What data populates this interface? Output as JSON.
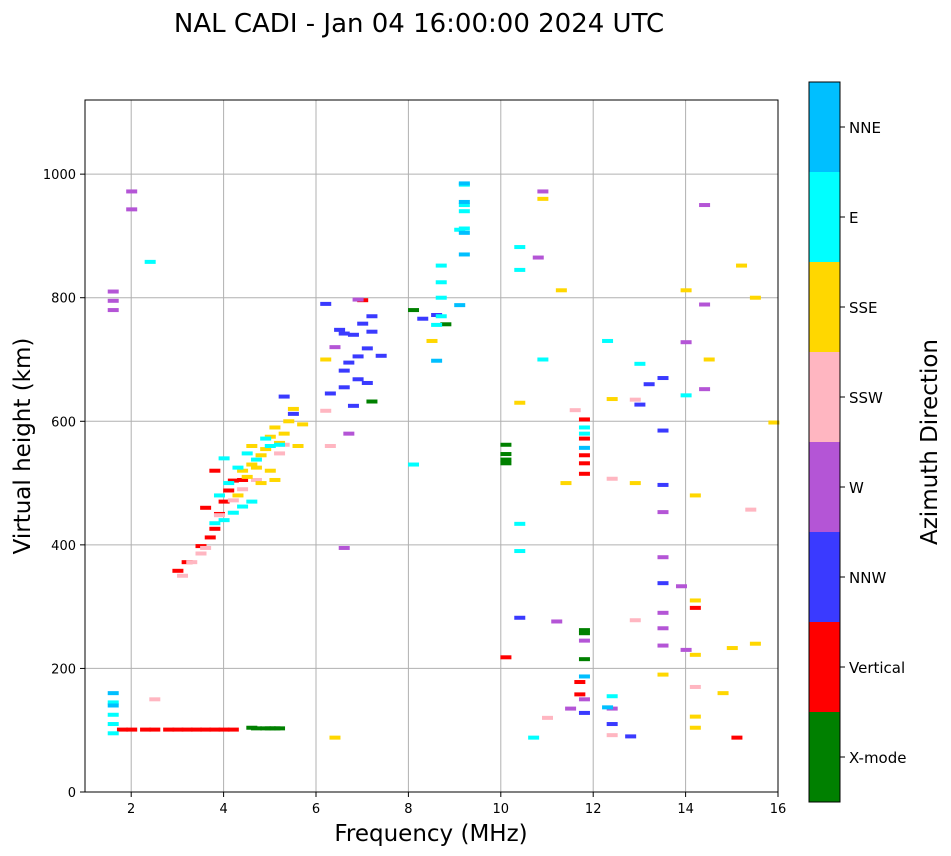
{
  "colors": {
    "X-mode": "#008000",
    "Vertical": "#ff0000",
    "NNW": "#3a3aff",
    "W": "#b455d6",
    "SSW": "#ffb6c1",
    "SSE": "#ffd700",
    "E": "#00ffff",
    "NNE": "#00bfff",
    "grid": "#b0b0b0"
  },
  "chart_data": {
    "type": "scatter",
    "title": "NAL CADI - Jan 04 16:00:00 2024 UTC",
    "xlabel": "Frequency (MHz)",
    "ylabel": "Virtual height (km)",
    "xlim": [
      1,
      16
    ],
    "ylim": [
      0,
      1120
    ],
    "grid": true,
    "x_ticks": [
      2,
      4,
      6,
      8,
      10,
      12,
      14,
      16
    ],
    "y_ticks": [
      0,
      200,
      400,
      600,
      800,
      1000
    ],
    "colorbar": {
      "label": "Azimuth Direction",
      "categories": [
        "X-mode",
        "Vertical",
        "NNW",
        "W",
        "SSW",
        "SSE",
        "E",
        "NNE"
      ]
    },
    "series": [
      {
        "name": "X-mode",
        "points": [
          [
            4.9,
            103
          ],
          [
            5.0,
            103
          ],
          [
            5.1,
            103
          ],
          [
            5.2,
            103
          ],
          [
            4.7,
            103
          ],
          [
            4.6,
            104
          ],
          [
            8.1,
            780
          ],
          [
            8.8,
            757
          ],
          [
            10.1,
            562
          ],
          [
            10.1,
            547
          ],
          [
            10.1,
            538
          ],
          [
            10.1,
            532
          ],
          [
            11.8,
            262
          ],
          [
            11.8,
            257
          ],
          [
            11.8,
            215
          ],
          [
            7.2,
            632
          ]
        ]
      },
      {
        "name": "Vertical",
        "points": [
          [
            1.8,
            101
          ],
          [
            2.0,
            101
          ],
          [
            2.3,
            101
          ],
          [
            2.5,
            101
          ],
          [
            2.8,
            101
          ],
          [
            3.0,
            101
          ],
          [
            3.2,
            101
          ],
          [
            3.4,
            101
          ],
          [
            3.6,
            101
          ],
          [
            3.8,
            101
          ],
          [
            4.0,
            101
          ],
          [
            4.2,
            101
          ],
          [
            3.0,
            358
          ],
          [
            3.2,
            372
          ],
          [
            3.5,
            398
          ],
          [
            3.7,
            412
          ],
          [
            3.8,
            426
          ],
          [
            3.9,
            450
          ],
          [
            4.0,
            470
          ],
          [
            4.1,
            488
          ],
          [
            4.2,
            504
          ],
          [
            3.8,
            520
          ],
          [
            4.4,
            505
          ],
          [
            3.6,
            460
          ],
          [
            10.1,
            218
          ],
          [
            11.7,
            178
          ],
          [
            11.7,
            158
          ],
          [
            11.8,
            603
          ],
          [
            11.8,
            572
          ],
          [
            11.8,
            545
          ],
          [
            11.8,
            532
          ],
          [
            11.8,
            515
          ],
          [
            14.2,
            298
          ],
          [
            15.1,
            88
          ],
          [
            7.0,
            796
          ]
        ]
      },
      {
        "name": "NNW",
        "points": [
          [
            6.2,
            790
          ],
          [
            6.5,
            748
          ],
          [
            6.6,
            742
          ],
          [
            6.8,
            740
          ],
          [
            7.0,
            758
          ],
          [
            7.2,
            745
          ],
          [
            7.1,
            718
          ],
          [
            6.9,
            705
          ],
          [
            7.4,
            706
          ],
          [
            6.7,
            695
          ],
          [
            6.6,
            682
          ],
          [
            6.9,
            668
          ],
          [
            7.1,
            662
          ],
          [
            6.6,
            655
          ],
          [
            6.8,
            625
          ],
          [
            6.3,
            645
          ],
          [
            7.2,
            770
          ],
          [
            8.6,
            772
          ],
          [
            8.3,
            766
          ],
          [
            5.5,
            612
          ],
          [
            5.3,
            640
          ],
          [
            13.5,
            585
          ],
          [
            13.5,
            497
          ],
          [
            13.5,
            338
          ],
          [
            12.4,
            110
          ],
          [
            12.8,
            90
          ],
          [
            13.2,
            660
          ],
          [
            13.5,
            670
          ],
          [
            13.0,
            627
          ],
          [
            11.8,
            128
          ],
          [
            10.4,
            282
          ]
        ]
      },
      {
        "name": "W",
        "points": [
          [
            1.6,
            810
          ],
          [
            1.6,
            795
          ],
          [
            1.6,
            780
          ],
          [
            2.0,
            972
          ],
          [
            2.0,
            943
          ],
          [
            6.4,
            720
          ],
          [
            6.9,
            797
          ],
          [
            6.6,
            395
          ],
          [
            6.7,
            580
          ],
          [
            10.8,
            865
          ],
          [
            10.9,
            972
          ],
          [
            11.2,
            276
          ],
          [
            11.8,
            245
          ],
          [
            11.5,
            135
          ],
          [
            11.8,
            150
          ],
          [
            12.4,
            135
          ],
          [
            13.5,
            290
          ],
          [
            13.5,
            265
          ],
          [
            13.5,
            237
          ],
          [
            13.5,
            380
          ],
          [
            13.5,
            453
          ],
          [
            13.9,
            333
          ],
          [
            14.0,
            230
          ],
          [
            14.4,
            652
          ],
          [
            14.4,
            789
          ],
          [
            14.0,
            728
          ],
          [
            14.4,
            950
          ]
        ]
      },
      {
        "name": "SSW",
        "points": [
          [
            3.1,
            350
          ],
          [
            3.3,
            372
          ],
          [
            3.5,
            386
          ],
          [
            3.6,
            395
          ],
          [
            3.9,
            448
          ],
          [
            4.2,
            472
          ],
          [
            4.4,
            490
          ],
          [
            4.7,
            505
          ],
          [
            5.2,
            548
          ],
          [
            5.3,
            562
          ],
          [
            6.3,
            560
          ],
          [
            6.2,
            617
          ],
          [
            12.4,
            507
          ],
          [
            12.9,
            278
          ],
          [
            12.9,
            635
          ],
          [
            14.2,
            170
          ],
          [
            15.4,
            457
          ],
          [
            12.4,
            92
          ],
          [
            11.0,
            120
          ],
          [
            11.6,
            618
          ],
          [
            2.5,
            150
          ]
        ]
      },
      {
        "name": "SSE",
        "points": [
          [
            4.3,
            480
          ],
          [
            4.4,
            520
          ],
          [
            4.5,
            510
          ],
          [
            4.6,
            530
          ],
          [
            4.7,
            525
          ],
          [
            4.8,
            545
          ],
          [
            4.9,
            555
          ],
          [
            5.0,
            575
          ],
          [
            5.1,
            590
          ],
          [
            5.2,
            565
          ],
          [
            5.3,
            580
          ],
          [
            5.4,
            600
          ],
          [
            5.5,
            620
          ],
          [
            4.6,
            560
          ],
          [
            4.8,
            500
          ],
          [
            5.0,
            520
          ],
          [
            5.1,
            505
          ],
          [
            5.6,
            560
          ],
          [
            5.7,
            595
          ],
          [
            6.2,
            700
          ],
          [
            8.5,
            730
          ],
          [
            10.4,
            630
          ],
          [
            10.9,
            960
          ],
          [
            11.4,
            500
          ],
          [
            11.3,
            812
          ],
          [
            12.4,
            636
          ],
          [
            12.9,
            500
          ],
          [
            14.0,
            812
          ],
          [
            14.5,
            700
          ],
          [
            14.2,
            480
          ],
          [
            14.2,
            310
          ],
          [
            14.2,
            222
          ],
          [
            14.2,
            122
          ],
          [
            14.2,
            104
          ],
          [
            13.5,
            190
          ],
          [
            15.2,
            852
          ],
          [
            15.5,
            800
          ],
          [
            15.5,
            240
          ],
          [
            15.0,
            233
          ],
          [
            14.8,
            160
          ],
          [
            15.9,
            598
          ],
          [
            6.4,
            88
          ]
        ]
      },
      {
        "name": "E",
        "points": [
          [
            1.6,
            145
          ],
          [
            1.6,
            125
          ],
          [
            1.6,
            110
          ],
          [
            1.6,
            95
          ],
          [
            2.4,
            858
          ],
          [
            3.8,
            435
          ],
          [
            4.0,
            440
          ],
          [
            4.2,
            452
          ],
          [
            4.4,
            462
          ],
          [
            4.6,
            470
          ],
          [
            3.9,
            480
          ],
          [
            4.1,
            500
          ],
          [
            4.0,
            540
          ],
          [
            4.3,
            525
          ],
          [
            4.5,
            548
          ],
          [
            4.7,
            538
          ],
          [
            4.9,
            572
          ],
          [
            5.0,
            560
          ],
          [
            5.2,
            562
          ],
          [
            9.2,
            983
          ],
          [
            9.2,
            950
          ],
          [
            9.2,
            940
          ],
          [
            9.2,
            912
          ],
          [
            9.1,
            910
          ],
          [
            8.7,
            825
          ],
          [
            8.7,
            800
          ],
          [
            8.7,
            770
          ],
          [
            8.6,
            756
          ],
          [
            8.1,
            530
          ],
          [
            10.4,
            882
          ],
          [
            10.4,
            845
          ],
          [
            10.4,
            434
          ],
          [
            10.4,
            390
          ],
          [
            10.9,
            700
          ],
          [
            11.8,
            590
          ],
          [
            11.8,
            580
          ],
          [
            12.3,
            730
          ],
          [
            12.4,
            155
          ],
          [
            13.0,
            693
          ],
          [
            14.0,
            642
          ],
          [
            10.7,
            88
          ],
          [
            8.7,
            852
          ]
        ]
      },
      {
        "name": "NNE",
        "points": [
          [
            1.6,
            160
          ],
          [
            1.6,
            140
          ],
          [
            9.2,
            985
          ],
          [
            9.2,
            955
          ],
          [
            9.2,
            905
          ],
          [
            9.2,
            870
          ],
          [
            9.1,
            788
          ],
          [
            8.6,
            698
          ],
          [
            11.8,
            557
          ],
          [
            11.8,
            187
          ],
          [
            12.3,
            137
          ]
        ]
      }
    ]
  }
}
